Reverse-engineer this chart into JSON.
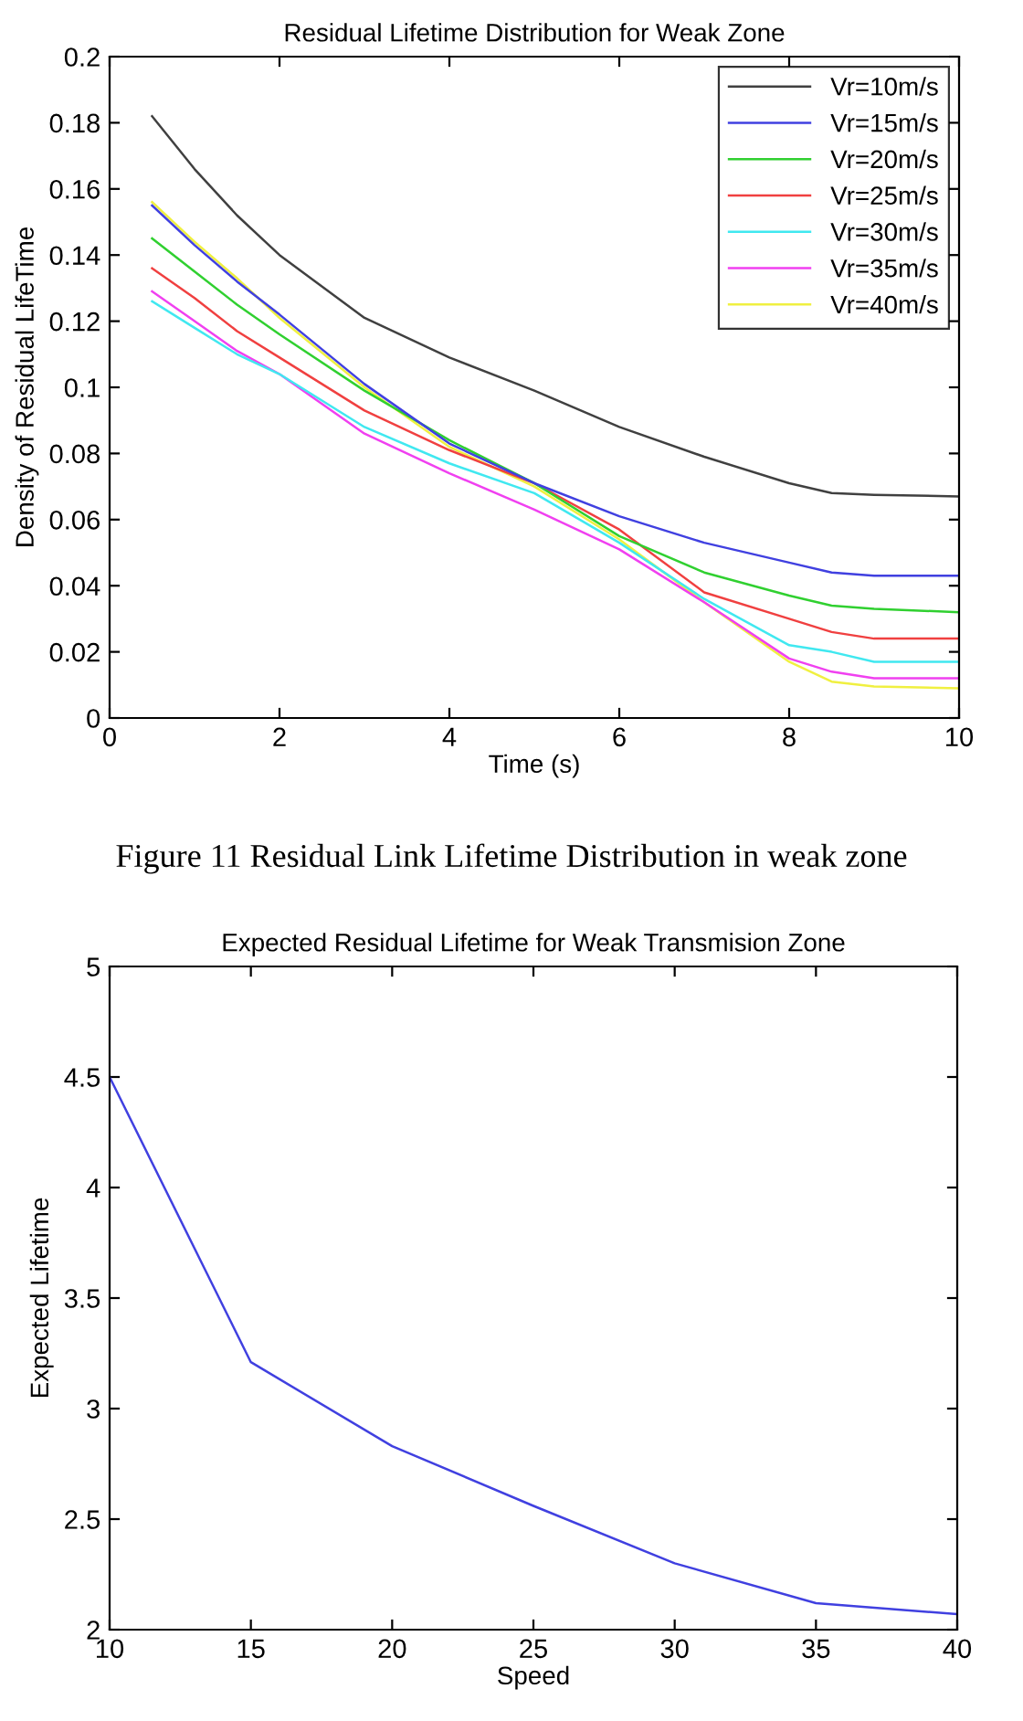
{
  "chart_data": [
    {
      "type": "line",
      "title": "Residual Lifetime Distribution for Weak Zone",
      "xlabel": "Time (s)",
      "ylabel": "Density of Residual LifeTime",
      "x": [
        0.5,
        1,
        1.5,
        2,
        3,
        4,
        5,
        6,
        7,
        8,
        8.5,
        9,
        10
      ],
      "series": [
        {
          "name": "Vr=10m/s",
          "color": "#404040",
          "values": [
            0.182,
            0.166,
            0.152,
            0.14,
            0.121,
            0.109,
            0.099,
            0.088,
            0.079,
            0.071,
            0.068,
            0.0675,
            0.067
          ]
        },
        {
          "name": "Vr=15m/s",
          "color": "#4040e0",
          "values": [
            0.155,
            0.143,
            0.132,
            0.122,
            0.101,
            0.083,
            0.071,
            0.061,
            0.053,
            0.047,
            0.044,
            0.043,
            0.043
          ]
        },
        {
          "name": "Vr=20m/s",
          "color": "#30d030",
          "values": [
            0.145,
            0.135,
            0.125,
            0.116,
            0.099,
            0.084,
            0.071,
            0.055,
            0.044,
            0.037,
            0.034,
            0.033,
            0.032
          ]
        },
        {
          "name": "Vr=25m/s",
          "color": "#f04040",
          "values": [
            0.136,
            0.127,
            0.117,
            0.109,
            0.093,
            0.081,
            0.071,
            0.057,
            0.038,
            0.03,
            0.026,
            0.024,
            0.024
          ]
        },
        {
          "name": "Vr=30m/s",
          "color": "#40e8f0",
          "values": [
            0.126,
            0.118,
            0.11,
            0.104,
            0.088,
            0.077,
            0.068,
            0.053,
            0.036,
            0.022,
            0.02,
            0.017,
            0.017
          ]
        },
        {
          "name": "Vr=35m/s",
          "color": "#f040f0",
          "values": [
            0.129,
            0.12,
            0.111,
            0.104,
            0.086,
            0.074,
            0.063,
            0.051,
            0.035,
            0.018,
            0.014,
            0.012,
            0.012
          ]
        },
        {
          "name": "Vr=40m/s",
          "color": "#f0f040",
          "values": [
            0.156,
            0.144,
            0.133,
            0.121,
            0.1,
            0.082,
            0.07,
            0.054,
            0.035,
            0.017,
            0.011,
            0.0095,
            0.009
          ]
        }
      ],
      "xlim": [
        0,
        10
      ],
      "xticks": [
        0,
        2,
        4,
        6,
        8,
        10
      ],
      "ylim": [
        0,
        0.2
      ],
      "yticks": [
        0,
        0.02,
        0.04,
        0.06,
        0.08,
        0.1,
        0.12,
        0.14,
        0.16,
        0.18,
        0.2
      ],
      "legend": "top right",
      "grid": false,
      "annotations": [
        "Figure 11 Residual Link Lifetime Distribution in weak zone"
      ]
    },
    {
      "type": "line",
      "title": "Expected Residual Lifetime for Weak Transmision Zone",
      "xlabel": "Speed",
      "ylabel": "Expected Lifetime",
      "x": [
        10,
        15,
        20,
        25,
        30,
        35,
        40
      ],
      "series": [
        {
          "color": "#4040e0",
          "values": [
            4.5,
            3.21,
            2.83,
            2.56,
            2.3,
            2.12,
            2.07
          ]
        }
      ],
      "xlim": [
        10,
        40
      ],
      "xticks": [
        10,
        15,
        20,
        25,
        30,
        35,
        40
      ],
      "ylim": [
        2,
        5
      ],
      "yticks": [
        2,
        2.5,
        3,
        3.5,
        4,
        4.5,
        5
      ],
      "grid": false
    }
  ]
}
